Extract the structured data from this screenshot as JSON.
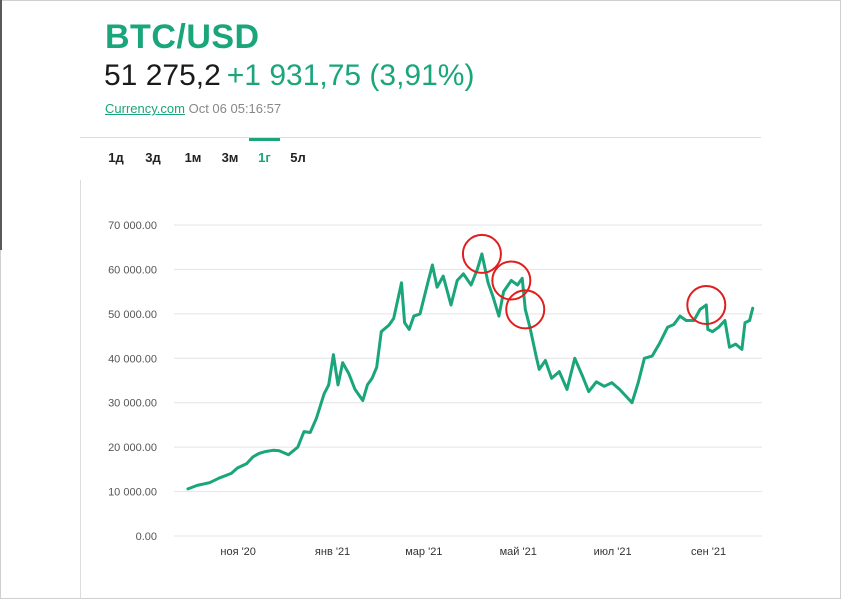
{
  "header": {
    "pair": "BTC/USD",
    "price": "51 275,2",
    "change": "+1 931,75 (3,91%)",
    "source_link": "Currency.com",
    "timestamp": "Oct 06 05:16:57"
  },
  "tabs": [
    {
      "label": "1д",
      "active": false
    },
    {
      "label": "3д",
      "active": false
    },
    {
      "label": "1м",
      "active": false
    },
    {
      "label": "3м",
      "active": false
    },
    {
      "label": "1г",
      "active": true
    },
    {
      "label": "5л",
      "active": false
    }
  ],
  "colors": {
    "accent": "#1aa57a",
    "marker": "#e01e1e",
    "grid": "#e4e4e4"
  },
  "chart_data": {
    "type": "line",
    "title": "",
    "xlabel": "",
    "ylabel": "",
    "ylim": [
      0,
      70000
    ],
    "y_ticks": [
      "0.00",
      "10 000.00",
      "20 000.00",
      "30 000.00",
      "40 000.00",
      "50 000.00",
      "60 000.00",
      "70 000.00"
    ],
    "x_ticks": [
      "ноя '20",
      "янв '21",
      "мар '21",
      "май '21",
      "июл '21",
      "сен '21"
    ],
    "grid": true,
    "legend": "none",
    "series": [
      {
        "x": [
          "2020-10-06",
          "2020-10-12",
          "2020-10-20",
          "2020-10-26",
          "2020-11-03",
          "2020-11-07",
          "2020-11-13",
          "2020-11-17",
          "2020-11-21",
          "2020-11-25",
          "2020-11-30",
          "2020-12-04",
          "2020-12-10",
          "2020-12-16",
          "2020-12-20",
          "2020-12-24",
          "2020-12-28",
          "2021-01-02",
          "2021-01-05",
          "2021-01-08",
          "2021-01-11",
          "2021-01-14",
          "2021-01-18",
          "2021-01-22",
          "2021-01-27",
          "2021-01-30",
          "2021-02-02",
          "2021-02-05",
          "2021-02-08",
          "2021-02-13",
          "2021-02-16",
          "2021-02-21",
          "2021-02-23",
          "2021-02-26",
          "2021-03-01",
          "2021-03-05",
          "2021-03-10",
          "2021-03-13",
          "2021-03-16",
          "2021-03-20",
          "2021-03-25",
          "2021-03-29",
          "2021-04-02",
          "2021-04-07",
          "2021-04-11",
          "2021-04-14",
          "2021-04-18",
          "2021-04-21",
          "2021-04-25",
          "2021-04-28",
          "2021-05-03",
          "2021-05-07",
          "2021-05-10",
          "2021-05-12",
          "2021-05-15",
          "2021-05-19",
          "2021-05-21",
          "2021-05-25",
          "2021-05-29",
          "2021-06-03",
          "2021-06-08",
          "2021-06-13",
          "2021-06-18",
          "2021-06-22",
          "2021-06-27",
          "2021-07-02",
          "2021-07-07",
          "2021-07-12",
          "2021-07-16",
          "2021-07-20",
          "2021-07-24",
          "2021-07-28",
          "2021-08-02",
          "2021-08-07",
          "2021-08-12",
          "2021-08-16",
          "2021-08-20",
          "2021-08-24",
          "2021-08-29",
          "2021-09-02",
          "2021-09-06",
          "2021-09-07",
          "2021-09-10",
          "2021-09-14",
          "2021-09-18",
          "2021-09-21",
          "2021-09-25",
          "2021-09-29",
          "2021-10-01",
          "2021-10-04",
          "2021-10-06"
        ],
        "values": [
          10600,
          11400,
          12000,
          13000,
          14100,
          15300,
          16300,
          17800,
          18600,
          19000,
          19300,
          19200,
          18300,
          20000,
          23500,
          23300,
          26500,
          32000,
          34000,
          40800,
          34000,
          39000,
          36500,
          33000,
          30500,
          34000,
          35500,
          38000,
          46000,
          47500,
          49000,
          57000,
          48000,
          46500,
          49500,
          50000,
          57000,
          61000,
          56000,
          58500,
          52000,
          57500,
          59000,
          56500,
          60000,
          63500,
          57000,
          54000,
          49500,
          55000,
          57500,
          56500,
          58000,
          51000,
          47000,
          40500,
          37500,
          39500,
          35500,
          37000,
          33000,
          40000,
          36000,
          32500,
          34700,
          33700,
          34500,
          33000,
          31500,
          30000,
          34500,
          40000,
          40500,
          43500,
          47000,
          47600,
          49500,
          48500,
          48500,
          51000,
          52000,
          46500,
          46000,
          47000,
          48500,
          42500,
          43200,
          42000,
          48000,
          48500,
          51275
        ]
      }
    ],
    "highlights": [
      {
        "x": "2021-04-14",
        "y": 63500
      },
      {
        "x": "2021-05-03",
        "y": 57500
      },
      {
        "x": "2021-05-12",
        "y": 51000
      },
      {
        "x": "2021-09-06",
        "y": 52000
      }
    ]
  }
}
